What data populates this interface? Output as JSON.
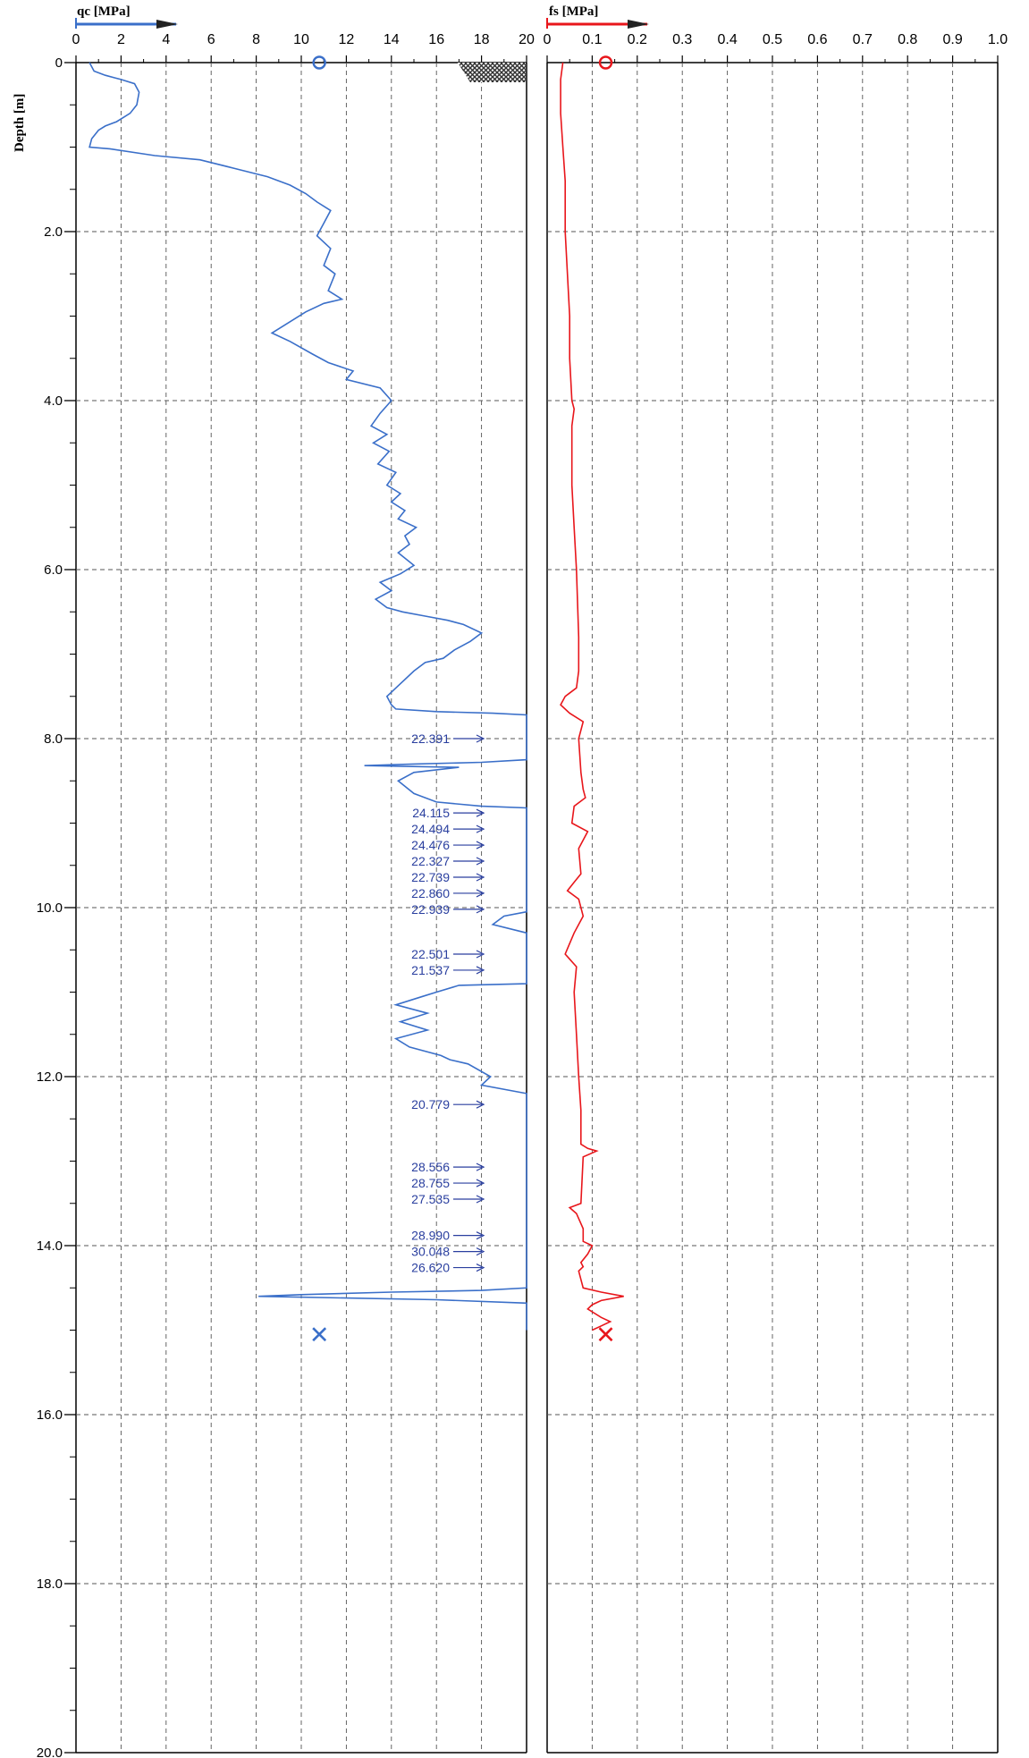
{
  "chart_data": [
    {
      "type": "line",
      "xlabel": "qc [MPa]",
      "ylabel": "Depth [m]",
      "xlim": [
        0,
        20
      ],
      "ylim": [
        0,
        20
      ],
      "y_inverted": true,
      "grid": true,
      "x_ticks": [
        "0",
        "2",
        "4",
        "6",
        "8",
        "10",
        "12",
        "14",
        "16",
        "18",
        "20"
      ],
      "y_ticks": [
        "0",
        "2.0",
        "4.0",
        "6.0",
        "8.0",
        "10.0",
        "12.0",
        "14.0",
        "16.0",
        "18.0",
        "20.0"
      ],
      "color": "#3a6fc9",
      "series": [
        {
          "points": [
            [
              0.6,
              0
            ],
            [
              0.8,
              0.1
            ],
            [
              1.3,
              0.15
            ],
            [
              2.0,
              0.2
            ],
            [
              2.6,
              0.25
            ],
            [
              2.8,
              0.35
            ],
            [
              2.7,
              0.5
            ],
            [
              2.4,
              0.6
            ],
            [
              1.8,
              0.7
            ],
            [
              1.3,
              0.75
            ],
            [
              1.0,
              0.8
            ],
            [
              0.7,
              0.9
            ],
            [
              0.6,
              1.0
            ],
            [
              1.5,
              1.02
            ],
            [
              3.5,
              1.1
            ],
            [
              5.5,
              1.15
            ],
            [
              7.0,
              1.25
            ],
            [
              8.5,
              1.35
            ],
            [
              9.5,
              1.45
            ],
            [
              10.2,
              1.55
            ],
            [
              10.7,
              1.65
            ],
            [
              11.3,
              1.75
            ],
            [
              11.0,
              1.9
            ],
            [
              10.7,
              2.05
            ],
            [
              11.3,
              2.2
            ],
            [
              11.0,
              2.4
            ],
            [
              11.5,
              2.5
            ],
            [
              11.2,
              2.7
            ],
            [
              11.8,
              2.8
            ],
            [
              11.0,
              2.85
            ],
            [
              10.2,
              2.95
            ],
            [
              9.3,
              3.1
            ],
            [
              8.7,
              3.2
            ],
            [
              9.5,
              3.3
            ],
            [
              10.5,
              3.45
            ],
            [
              11.2,
              3.55
            ],
            [
              12.3,
              3.65
            ],
            [
              12.0,
              3.75
            ],
            [
              13.5,
              3.85
            ],
            [
              14.0,
              4.0
            ],
            [
              13.5,
              4.15
            ],
            [
              13.1,
              4.3
            ],
            [
              13.8,
              4.4
            ],
            [
              13.2,
              4.5
            ],
            [
              13.9,
              4.6
            ],
            [
              13.4,
              4.75
            ],
            [
              14.2,
              4.85
            ],
            [
              13.8,
              5.0
            ],
            [
              14.4,
              5.1
            ],
            [
              14.0,
              5.2
            ],
            [
              14.6,
              5.3
            ],
            [
              14.3,
              5.4
            ],
            [
              15.1,
              5.5
            ],
            [
              14.6,
              5.6
            ],
            [
              14.8,
              5.7
            ],
            [
              14.3,
              5.8
            ],
            [
              15.0,
              5.95
            ],
            [
              14.4,
              6.05
            ],
            [
              13.5,
              6.15
            ],
            [
              14.0,
              6.25
            ],
            [
              13.3,
              6.35
            ],
            [
              13.8,
              6.45
            ],
            [
              14.5,
              6.5
            ],
            [
              15.5,
              6.55
            ],
            [
              16.5,
              6.6
            ],
            [
              17.2,
              6.65
            ],
            [
              18.0,
              6.75
            ],
            [
              17.5,
              6.85
            ],
            [
              16.8,
              6.95
            ],
            [
              16.3,
              7.05
            ],
            [
              15.5,
              7.1
            ],
            [
              15.0,
              7.2
            ],
            [
              14.4,
              7.35
            ],
            [
              13.8,
              7.5
            ],
            [
              14.0,
              7.6
            ],
            [
              14.2,
              7.65
            ],
            [
              16.0,
              7.68
            ],
            [
              18.5,
              7.7
            ],
            [
              20,
              7.72
            ],
            [
              20,
              8.25
            ],
            [
              18.0,
              8.28
            ],
            [
              15.0,
              8.3
            ],
            [
              12.8,
              8.32
            ],
            [
              17.0,
              8.34
            ],
            [
              15.0,
              8.4
            ],
            [
              14.3,
              8.5
            ],
            [
              15.0,
              8.65
            ],
            [
              16.0,
              8.75
            ],
            [
              18.0,
              8.8
            ],
            [
              20,
              8.82
            ],
            [
              20,
              10.05
            ],
            [
              19.0,
              10.1
            ],
            [
              18.5,
              10.2
            ],
            [
              20,
              10.3
            ],
            [
              20,
              10.9
            ],
            [
              17.0,
              10.92
            ],
            [
              16.0,
              11.0
            ],
            [
              15.4,
              11.05
            ],
            [
              14.2,
              11.15
            ],
            [
              15.6,
              11.25
            ],
            [
              14.4,
              11.35
            ],
            [
              15.6,
              11.45
            ],
            [
              14.2,
              11.55
            ],
            [
              14.8,
              11.65
            ],
            [
              16.2,
              11.75
            ],
            [
              16.6,
              11.8
            ],
            [
              17.4,
              11.85
            ],
            [
              18.4,
              12.0
            ],
            [
              18.0,
              12.1
            ],
            [
              20,
              12.2
            ],
            [
              20,
              14.5
            ],
            [
              18.0,
              14.53
            ],
            [
              14.0,
              14.55
            ],
            [
              10.0,
              14.58
            ],
            [
              8.1,
              14.6
            ],
            [
              12.0,
              14.62
            ],
            [
              16.0,
              14.64
            ],
            [
              20,
              14.68
            ],
            [
              20,
              15.0
            ]
          ]
        }
      ],
      "annotations": [
        "22.391",
        "24.115",
        "24.494",
        "24.476",
        "22.327",
        "22.739",
        "22.860",
        "22.939",
        "22.501",
        "21.537",
        "20.779",
        "28.556",
        "28.755",
        "27.535",
        "28.990",
        "30.048",
        "26.620"
      ],
      "annotation_depths": [
        8.0,
        8.88,
        9.07,
        9.26,
        9.45,
        9.64,
        9.83,
        10.02,
        10.55,
        10.74,
        12.33,
        13.07,
        13.26,
        13.45,
        13.88,
        14.07,
        14.26
      ],
      "markers": [
        {
          "symbol": "circle",
          "x": 10.8,
          "depth": 0
        },
        {
          "symbol": "cross",
          "x": 10.8,
          "depth": 15.05
        }
      ]
    },
    {
      "type": "line",
      "xlabel": "fs [MPa]",
      "xlim": [
        0,
        1.0
      ],
      "ylim": [
        0,
        20
      ],
      "y_inverted": true,
      "grid": true,
      "x_ticks": [
        "0",
        "0.1",
        "0.2",
        "0.3",
        "0.4",
        "0.5",
        "0.6",
        "0.7",
        "0.8",
        "0.9",
        "1.0"
      ],
      "color": "#e8161b",
      "series": [
        {
          "points": [
            [
              0.035,
              0
            ],
            [
              0.03,
              0.2
            ],
            [
              0.03,
              0.6
            ],
            [
              0.035,
              1.0
            ],
            [
              0.04,
              1.4
            ],
            [
              0.04,
              2.0
            ],
            [
              0.045,
              2.5
            ],
            [
              0.05,
              3.0
            ],
            [
              0.05,
              3.5
            ],
            [
              0.055,
              4.0
            ],
            [
              0.06,
              4.1
            ],
            [
              0.055,
              4.3
            ],
            [
              0.055,
              5.0
            ],
            [
              0.06,
              5.5
            ],
            [
              0.065,
              6.0
            ],
            [
              0.07,
              6.8
            ],
            [
              0.07,
              7.2
            ],
            [
              0.065,
              7.4
            ],
            [
              0.04,
              7.5
            ],
            [
              0.03,
              7.6
            ],
            [
              0.05,
              7.7
            ],
            [
              0.08,
              7.8
            ],
            [
              0.07,
              8.0
            ],
            [
              0.075,
              8.4
            ],
            [
              0.08,
              8.6
            ],
            [
              0.085,
              8.7
            ],
            [
              0.06,
              8.8
            ],
            [
              0.055,
              9.0
            ],
            [
              0.09,
              9.1
            ],
            [
              0.07,
              9.3
            ],
            [
              0.075,
              9.6
            ],
            [
              0.06,
              9.7
            ],
            [
              0.045,
              9.8
            ],
            [
              0.07,
              9.9
            ],
            [
              0.08,
              10.1
            ],
            [
              0.06,
              10.3
            ],
            [
              0.04,
              10.55
            ],
            [
              0.065,
              10.7
            ],
            [
              0.06,
              11.0
            ],
            [
              0.065,
              11.5
            ],
            [
              0.07,
              12.0
            ],
            [
              0.075,
              12.4
            ],
            [
              0.075,
              12.8
            ],
            [
              0.09,
              12.85
            ],
            [
              0.11,
              12.88
            ],
            [
              0.08,
              12.95
            ],
            [
              0.075,
              13.5
            ],
            [
              0.05,
              13.55
            ],
            [
              0.065,
              13.62
            ],
            [
              0.08,
              13.8
            ],
            [
              0.08,
              13.95
            ],
            [
              0.1,
              14.0
            ],
            [
              0.09,
              14.1
            ],
            [
              0.075,
              14.2
            ],
            [
              0.08,
              14.25
            ],
            [
              0.07,
              14.3
            ],
            [
              0.08,
              14.5
            ],
            [
              0.12,
              14.55
            ],
            [
              0.17,
              14.6
            ],
            [
              0.12,
              14.65
            ],
            [
              0.1,
              14.7
            ],
            [
              0.09,
              14.75
            ],
            [
              0.12,
              14.85
            ],
            [
              0.14,
              14.9
            ],
            [
              0.12,
              14.95
            ],
            [
              0.1,
              15.0
            ]
          ]
        }
      ],
      "markers": [
        {
          "symbol": "circle",
          "x": 0.13,
          "depth": 0
        },
        {
          "symbol": "cross",
          "x": 0.13,
          "depth": 15.05
        }
      ]
    }
  ]
}
